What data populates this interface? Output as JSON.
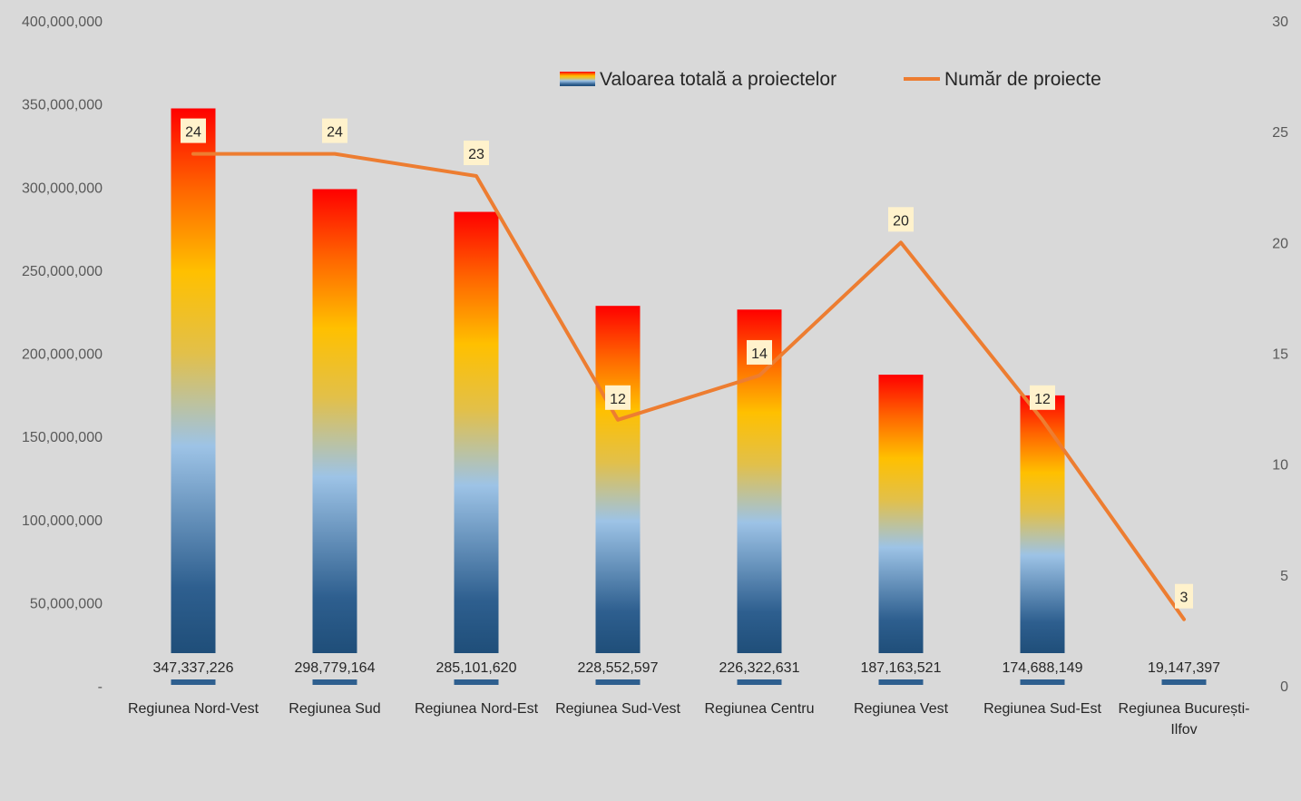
{
  "chart_data": {
    "type": "bar",
    "categories": [
      [
        "Regiunea Nord-Vest"
      ],
      [
        "Regiunea Sud"
      ],
      [
        "Regiunea Nord-Est"
      ],
      [
        "Regiunea Sud-Vest"
      ],
      [
        "Regiunea Centru"
      ],
      [
        "Regiunea Vest"
      ],
      [
        "Regiunea Sud-Est"
      ],
      [
        "Regiunea București-",
        "Ilfov"
      ]
    ],
    "series": [
      {
        "name": "Valoarea totală a proiectelor",
        "type": "bar",
        "axis": "left",
        "values": [
          347337226,
          298779164,
          285101620,
          228552597,
          226322631,
          187163521,
          174688149,
          19147397
        ],
        "data_labels": [
          "347,337,226",
          "298,779,164",
          "285,101,620",
          "228,552,597",
          "226,322,631",
          "187,163,521",
          "174,688,149",
          "19,147,397"
        ]
      },
      {
        "name": "Număr de proiecte",
        "type": "line",
        "axis": "right",
        "values": [
          24,
          24,
          23,
          12,
          14,
          20,
          12,
          3
        ],
        "data_labels": [
          "24",
          "24",
          "23",
          "12",
          "14",
          "20",
          "12",
          "3"
        ]
      }
    ],
    "y_left": {
      "ylim": [
        0,
        400000000
      ],
      "ticks": [
        0,
        50000000,
        100000000,
        150000000,
        200000000,
        250000000,
        300000000,
        350000000,
        400000000
      ],
      "tick_labels": [
        "-",
        "50,000,000",
        "100,000,000",
        "150,000,000",
        "200,000,000",
        "250,000,000",
        "300,000,000",
        "350,000,000",
        "400,000,000"
      ]
    },
    "y_right": {
      "ylim": [
        0,
        30
      ],
      "ticks": [
        0,
        5,
        10,
        15,
        20,
        25,
        30
      ],
      "tick_labels": [
        "0",
        "5",
        "10",
        "15",
        "20",
        "25",
        "30"
      ]
    },
    "grid": false,
    "legend_position": "top-right",
    "colors": {
      "background": "#d9d9d9",
      "line": "#ed7d31",
      "bar_gradient": [
        "#1f4e79",
        "#9dc3e6",
        "#ffc000",
        "#ff6600",
        "#ff0000"
      ],
      "label_box": "#fff2cc"
    }
  }
}
